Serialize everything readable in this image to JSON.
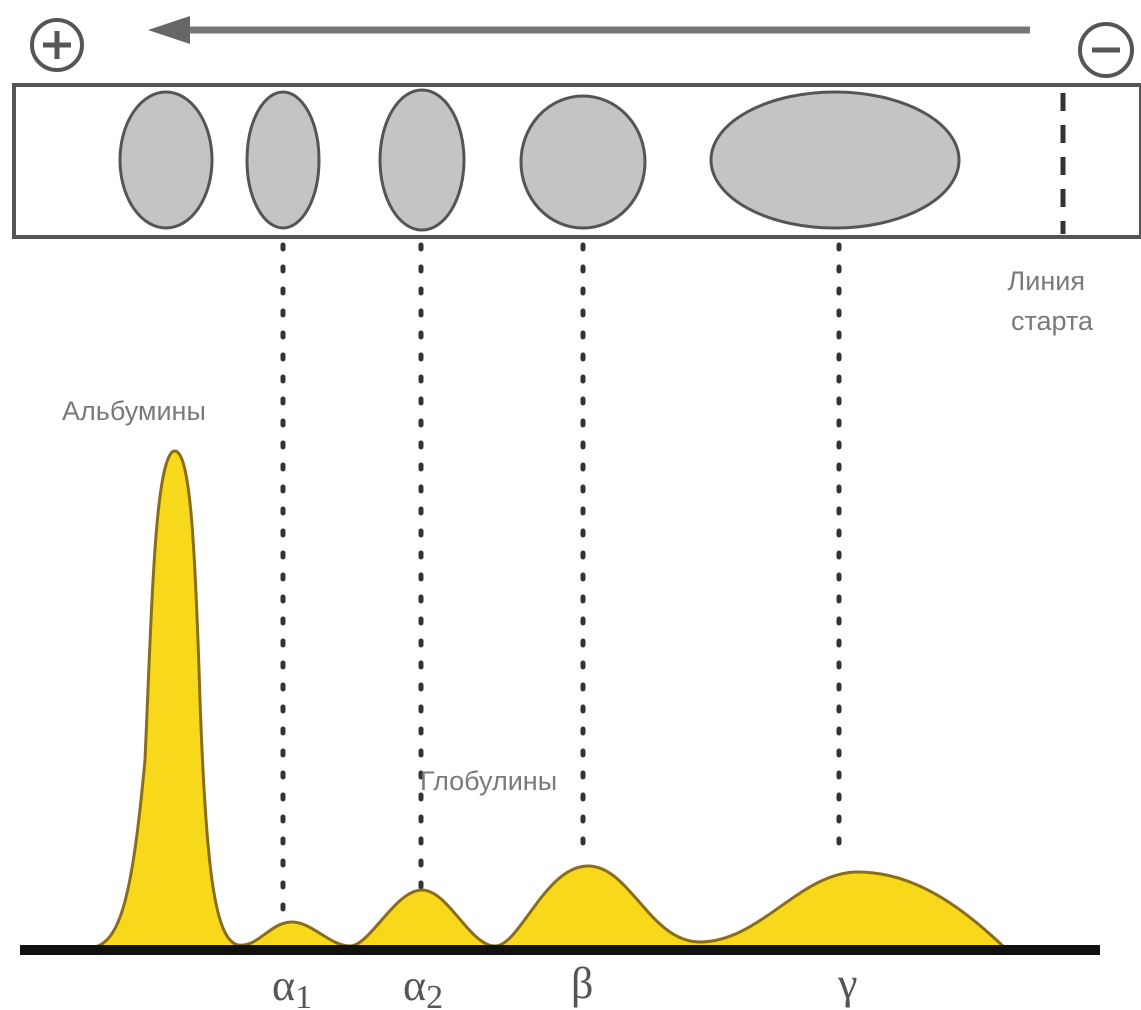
{
  "diagram": {
    "polarity": {
      "positive_symbol": "+",
      "negative_symbol": "−"
    },
    "start_line_label": [
      "Линия",
      "старта"
    ],
    "albumins_label": "Альбумины",
    "globulins_label": "Глобулины",
    "fractions": [
      {
        "symbol": "α",
        "subscript": "1"
      },
      {
        "symbol": "α",
        "subscript": "2"
      },
      {
        "symbol": "β",
        "subscript": ""
      },
      {
        "symbol": "γ",
        "subscript": ""
      }
    ],
    "colors": {
      "spot_fill": "#c4c4c4",
      "spot_stroke": "#555555",
      "peak_fill": "#f7d81a",
      "peak_stroke": "#8a6d1a",
      "baseline": "#111111",
      "arrow": "#777777",
      "text": "#7a7a7a"
    }
  }
}
